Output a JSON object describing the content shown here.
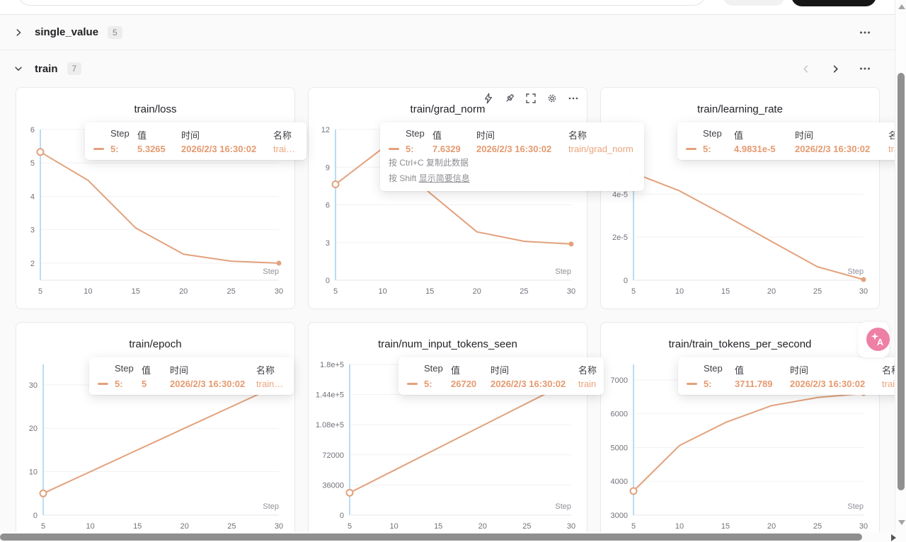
{
  "colors": {
    "line": "#e3a17b",
    "tooltip_value_text": "#e59a70",
    "tooltip_name_text": "#eaa47c",
    "highlight_line": "#b8dcf6",
    "translate_button": "#ee7fa5",
    "primary_button_bg": "#161616"
  },
  "sections": {
    "single_value": {
      "title": "single_value",
      "count": "5"
    },
    "train": {
      "title": "train",
      "count": "7"
    }
  },
  "icons": {
    "chart_toolbar": [
      "zap-icon",
      "pin-icon",
      "fullscreen-icon",
      "settings-icon",
      "more-icon"
    ],
    "section_controls": [
      "chevron-left-icon",
      "chevron-right-icon",
      "more-icon"
    ]
  },
  "tooltip_headers": {
    "step": "Step",
    "value": "值",
    "time": "时间",
    "name": "名称"
  },
  "tooltip_hints": {
    "line1": "按 Ctrl+C 复制此数据",
    "line2_prefix": "按 Shift ",
    "line2_link": "显示简要信息"
  },
  "axis_name": "Step",
  "chart_data": [
    {
      "type": "line",
      "title": "train/loss",
      "x": [
        5,
        10,
        15,
        20,
        25,
        30
      ],
      "values": [
        5.3265,
        4.48,
        3.05,
        2.27,
        2.06,
        2.0
      ],
      "xlabel": "Step",
      "x_tick_labels": [
        "5",
        "10",
        "15",
        "20",
        "25",
        "30"
      ],
      "y_tick_values": [
        2,
        3,
        4,
        5,
        6
      ],
      "y_tick_labels": [
        "2",
        "3",
        "4",
        "5",
        "6"
      ],
      "ylim": [
        1.49,
        6
      ],
      "grid": true,
      "tooltip": {
        "step": "5:",
        "value": "5.3265",
        "time": "2026/2/3 16:30:02",
        "name": "train…"
      }
    },
    {
      "type": "line",
      "title": "train/grad_norm",
      "x": [
        5,
        10,
        15,
        20,
        25,
        30
      ],
      "values": [
        7.6329,
        10.5,
        6.95,
        3.85,
        3.1,
        2.88
      ],
      "xlabel": "Step",
      "x_tick_labels": [
        "5",
        "10",
        "15",
        "20",
        "25",
        "30"
      ],
      "y_tick_values": [
        0,
        3,
        6,
        9,
        12
      ],
      "y_tick_labels": [
        "0",
        "3",
        "6",
        "9",
        "12"
      ],
      "ylim": [
        0,
        12
      ],
      "grid": true,
      "tooltip": {
        "step": "5:",
        "value": "7.6329",
        "time": "2026/2/3 16:30:02",
        "name": "train/grad_norm"
      },
      "show_hints": true
    },
    {
      "type": "line",
      "title": "train/learning_rate",
      "x": [
        5,
        10,
        15,
        20,
        25,
        30
      ],
      "values": [
        4.9831e-05,
        4.15e-05,
        3e-05,
        1.8e-05,
        6.2e-06,
        3e-07
      ],
      "xlabel": "Step",
      "x_tick_labels": [
        "5",
        "10",
        "15",
        "20",
        "25",
        "30"
      ],
      "y_tick_values": [
        0,
        2e-05,
        4e-05
      ],
      "y_tick_labels": [
        "0",
        "2e-5",
        "4e-5"
      ],
      "ylim": [
        0,
        7e-05
      ],
      "grid": true,
      "tooltip": {
        "step": "5:",
        "value": "4.9831e-5",
        "time": "2026/2/3 16:30:02",
        "name": "train"
      }
    },
    {
      "type": "line",
      "title": "train/epoch",
      "x": [
        5,
        10,
        15,
        20,
        25,
        30
      ],
      "values": [
        5,
        10,
        15,
        20,
        25,
        30
      ],
      "xlabel": "Step",
      "x_tick_labels": [
        "5",
        "10",
        "15",
        "20",
        "25",
        "30"
      ],
      "y_tick_values": [
        0,
        10,
        20,
        30
      ],
      "y_tick_labels": [
        "0",
        "10",
        "20",
        "30"
      ],
      "ylim": [
        0,
        34.7
      ],
      "grid": true,
      "tooltip": {
        "step": "5:",
        "value": "5",
        "time": "2026/2/3 16:30:02",
        "name": "train…"
      }
    },
    {
      "type": "line",
      "title": "train/num_input_tokens_seen",
      "x": [
        5,
        10,
        15,
        20,
        25,
        30
      ],
      "values": [
        26720,
        53440,
        80160,
        106880,
        133600,
        160320
      ],
      "xlabel": "Step",
      "x_tick_labels": [
        "5",
        "10",
        "15",
        "20",
        "25",
        "30"
      ],
      "y_tick_values": [
        0,
        36000,
        72000,
        108000,
        144000,
        180000
      ],
      "y_tick_labels": [
        "0",
        "36000",
        "72000",
        "1.08e+5",
        "1.44e+5",
        "1.8e+5"
      ],
      "ylim": [
        0,
        180000
      ],
      "grid": true,
      "tooltip": {
        "step": "5:",
        "value": "26720",
        "time": "2026/2/3 16:30:02",
        "name": "train"
      }
    },
    {
      "type": "line",
      "title": "train/train_tokens_per_second",
      "x": [
        5,
        10,
        15,
        20,
        25,
        30
      ],
      "values": [
        3711.789,
        5060,
        5740,
        6240,
        6480,
        6600
      ],
      "xlabel": "Step",
      "x_tick_labels": [
        "5",
        "10",
        "15",
        "20",
        "25",
        "30"
      ],
      "y_tick_values": [
        3000,
        4000,
        5000,
        6000,
        7000
      ],
      "y_tick_labels": [
        "3000",
        "4000",
        "5000",
        "6000",
        "7000"
      ],
      "ylim": [
        3000,
        7460
      ],
      "grid": true,
      "tooltip": {
        "step": "5:",
        "value": "3711.789",
        "time": "2026/2/3 16:30:02",
        "name": "train"
      }
    }
  ]
}
